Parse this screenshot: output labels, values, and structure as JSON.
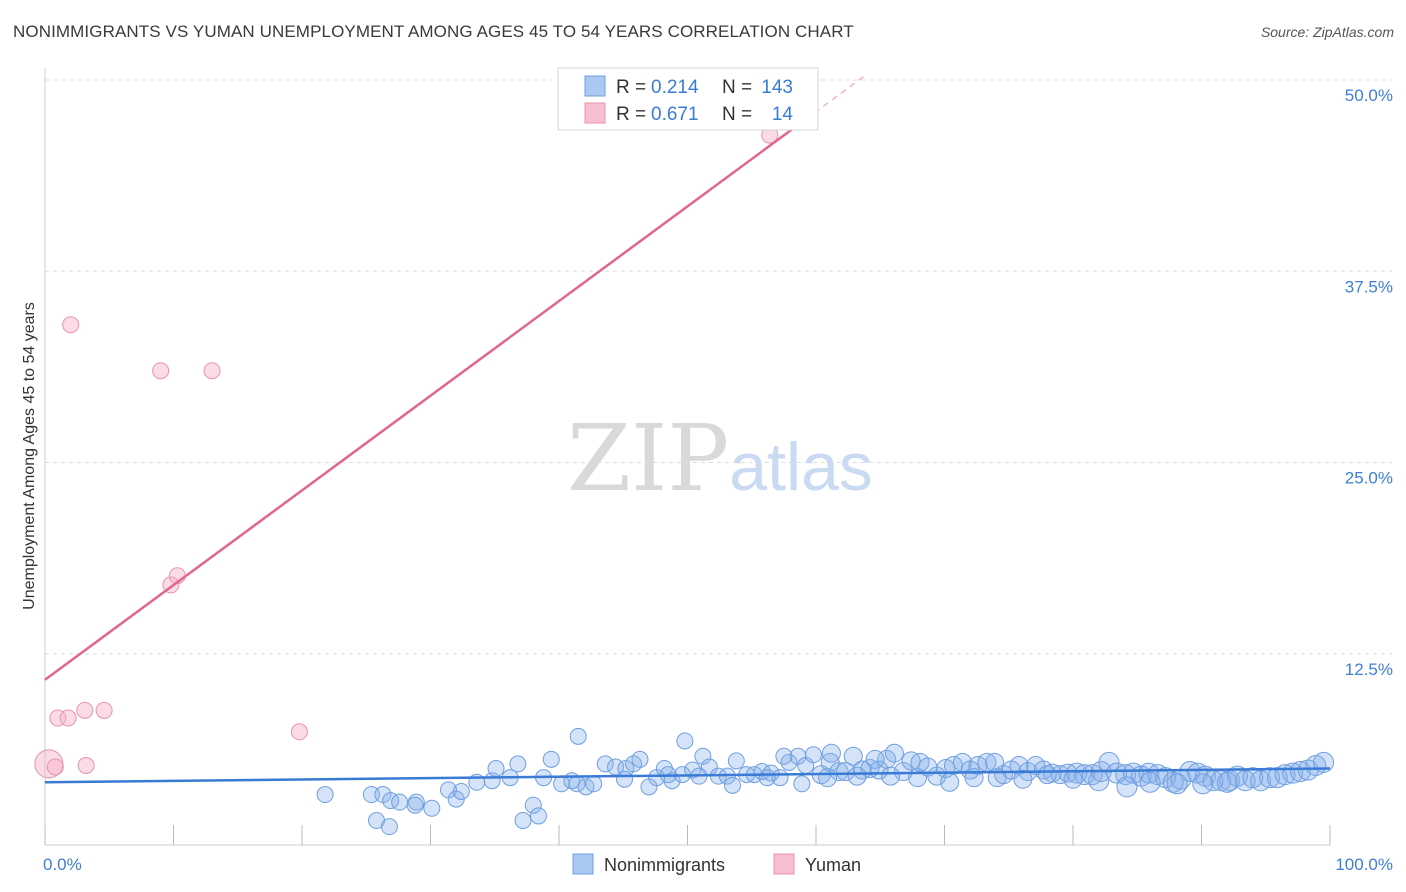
{
  "header": {
    "title": "NONIMMIGRANTS VS YUMAN UNEMPLOYMENT AMONG AGES 45 TO 54 YEARS CORRELATION CHART",
    "source": "Source: ZipAtlas.com"
  },
  "watermark": {
    "zip": "ZIP",
    "atlas": "atlas"
  },
  "legend": {
    "rows": [
      {
        "r_label": "R =",
        "r_value": "0.214",
        "n_label": "N =",
        "n_value": "143",
        "color": "#a9c8f2",
        "stroke": "#6f9fe0"
      },
      {
        "r_label": "R =",
        "r_value": "0.671",
        "n_label": "N =",
        "n_value": "14",
        "color": "#f8bfd0",
        "stroke": "#e993ae"
      }
    ]
  },
  "bottom_legend": {
    "items": [
      "Nonimmigrants",
      "Yuman"
    ]
  },
  "colors": {
    "blue": "#3a7bd5",
    "pink": "#e0668e",
    "blue_fill": "rgba(133,176,234,0.35)",
    "pink_fill": "rgba(246,178,199,0.45)",
    "tick": "#3f7fd4"
  },
  "chart_data": {
    "type": "scatter",
    "title": "NONIMMIGRANTS VS YUMAN UNEMPLOYMENT AMONG AGES 45 TO 54 YEARS CORRELATION CHART",
    "xlabel": "",
    "ylabel": "Unemployment Among Ages 45 to 54 years",
    "xlim": [
      0,
      100
    ],
    "ylim": [
      0,
      50
    ],
    "x_tick_labels": [
      "0.0%",
      "100.0%"
    ],
    "y_ticks": [
      12.5,
      25.0,
      37.5,
      50.0
    ],
    "y_tick_labels": [
      "12.5%",
      "25.0%",
      "37.5%",
      "50.0%"
    ],
    "series": [
      {
        "name": "Nonimmigrants",
        "r": 0.214,
        "n": 143,
        "trend": {
          "x0": 0,
          "y0": 4.1,
          "x1": 100,
          "y1": 5.0
        },
        "points": [
          [
            21.8,
            3.3
          ],
          [
            25.4,
            3.3
          ],
          [
            26.3,
            3.3
          ],
          [
            26.9,
            2.9
          ],
          [
            27.6,
            2.8
          ],
          [
            28.9,
            2.8
          ],
          [
            30.1,
            2.4
          ],
          [
            31.4,
            3.6
          ],
          [
            32.0,
            3.0
          ],
          [
            32.4,
            3.5
          ],
          [
            25.8,
            1.6
          ],
          [
            26.8,
            1.2
          ],
          [
            28.8,
            2.6
          ],
          [
            34.8,
            4.2
          ],
          [
            33.6,
            4.1
          ],
          [
            36.2,
            4.4
          ],
          [
            35.1,
            5.0
          ],
          [
            36.8,
            5.3
          ],
          [
            38.0,
            2.6
          ],
          [
            38.4,
            1.9
          ],
          [
            37.2,
            1.6
          ],
          [
            38.8,
            4.4
          ],
          [
            39.4,
            5.6
          ],
          [
            40.2,
            4.0
          ],
          [
            41.0,
            4.2
          ],
          [
            41.4,
            4.0
          ],
          [
            42.1,
            3.8
          ],
          [
            42.7,
            4.0
          ],
          [
            43.6,
            5.3
          ],
          [
            44.4,
            5.1
          ],
          [
            45.2,
            5.0
          ],
          [
            45.8,
            5.3
          ],
          [
            46.3,
            5.6
          ],
          [
            47.6,
            4.4
          ],
          [
            48.2,
            5.0
          ],
          [
            48.8,
            4.2
          ],
          [
            49.6,
            4.6
          ],
          [
            50.4,
            4.9
          ],
          [
            51.2,
            5.8
          ],
          [
            51.7,
            5.1
          ],
          [
            52.4,
            4.5
          ],
          [
            53.1,
            4.5
          ],
          [
            53.8,
            5.5
          ],
          [
            54.6,
            4.6
          ],
          [
            55.2,
            4.6
          ],
          [
            55.8,
            4.8
          ],
          [
            56.5,
            4.7
          ],
          [
            57.2,
            4.4
          ],
          [
            57.9,
            5.4
          ],
          [
            58.6,
            5.8
          ],
          [
            59.2,
            5.2
          ],
          [
            59.8,
            5.9
          ],
          [
            60.4,
            4.6
          ],
          [
            61.1,
            5.4
          ],
          [
            61.8,
            4.8
          ],
          [
            62.3,
            4.8
          ],
          [
            62.9,
            5.8
          ],
          [
            63.6,
            4.9
          ],
          [
            64.2,
            5.0
          ],
          [
            64.9,
            4.9
          ],
          [
            65.5,
            5.6
          ],
          [
            66.1,
            6.0
          ],
          [
            66.8,
            4.8
          ],
          [
            67.4,
            5.5
          ],
          [
            68.1,
            5.4
          ],
          [
            68.7,
            5.1
          ],
          [
            69.4,
            4.5
          ],
          [
            70.1,
            5.0
          ],
          [
            70.7,
            5.2
          ],
          [
            71.4,
            5.4
          ],
          [
            72.0,
            4.9
          ],
          [
            72.6,
            5.2
          ],
          [
            73.3,
            5.4
          ],
          [
            73.9,
            5.4
          ],
          [
            74.6,
            4.6
          ],
          [
            75.2,
            4.9
          ],
          [
            75.8,
            5.2
          ],
          [
            76.5,
            4.8
          ],
          [
            77.1,
            5.2
          ],
          [
            77.7,
            4.9
          ],
          [
            78.4,
            4.7
          ],
          [
            79.0,
            4.6
          ],
          [
            79.6,
            4.7
          ],
          [
            80.3,
            4.7
          ],
          [
            80.9,
            4.6
          ],
          [
            81.5,
            4.6
          ],
          [
            82.2,
            4.8
          ],
          [
            82.8,
            5.4
          ],
          [
            83.4,
            4.7
          ],
          [
            84.1,
            4.6
          ],
          [
            84.7,
            4.7
          ],
          [
            85.3,
            4.5
          ],
          [
            85.9,
            4.7
          ],
          [
            86.6,
            4.6
          ],
          [
            87.2,
            4.4
          ],
          [
            87.8,
            4.1
          ],
          [
            88.4,
            4.3
          ],
          [
            89.1,
            4.8
          ],
          [
            89.7,
            4.7
          ],
          [
            90.3,
            4.5
          ],
          [
            90.9,
            4.2
          ],
          [
            91.5,
            4.2
          ],
          [
            92.2,
            4.2
          ],
          [
            92.8,
            4.5
          ],
          [
            93.4,
            4.2
          ],
          [
            94.0,
            4.4
          ],
          [
            94.6,
            4.2
          ],
          [
            95.3,
            4.4
          ],
          [
            95.9,
            4.4
          ],
          [
            96.5,
            4.6
          ],
          [
            97.1,
            4.7
          ],
          [
            97.7,
            4.8
          ],
          [
            98.3,
            4.9
          ],
          [
            98.9,
            5.2
          ],
          [
            99.5,
            5.4
          ],
          [
            64.6,
            5.6
          ],
          [
            57.5,
            5.8
          ],
          [
            49.8,
            6.8
          ],
          [
            41.5,
            7.1
          ],
          [
            61.2,
            6.0
          ],
          [
            45.1,
            4.3
          ],
          [
            47.0,
            3.8
          ],
          [
            48.5,
            4.6
          ],
          [
            50.9,
            4.5
          ],
          [
            53.5,
            3.9
          ],
          [
            56.2,
            4.4
          ],
          [
            58.9,
            4.0
          ],
          [
            60.9,
            4.4
          ],
          [
            63.2,
            4.5
          ],
          [
            65.8,
            4.5
          ],
          [
            67.9,
            4.4
          ],
          [
            70.4,
            4.1
          ],
          [
            72.3,
            4.4
          ],
          [
            74.1,
            4.4
          ],
          [
            76.1,
            4.3
          ],
          [
            78.0,
            4.6
          ],
          [
            80.0,
            4.3
          ],
          [
            82.0,
            4.2
          ],
          [
            84.2,
            3.8
          ],
          [
            86.0,
            4.1
          ],
          [
            88.1,
            4.0
          ],
          [
            90.1,
            4.0
          ],
          [
            92.0,
            4.1
          ]
        ]
      },
      {
        "name": "Yuman",
        "r": 0.671,
        "n": 14,
        "trend": {
          "x0": 0,
          "y0": 10.8,
          "x1": 58.5,
          "y1": 47.0
        },
        "points": [
          [
            0.3,
            5.3
          ],
          [
            0.8,
            5.1
          ],
          [
            1.0,
            8.3
          ],
          [
            1.8,
            8.3
          ],
          [
            2.0,
            34.0
          ],
          [
            3.1,
            8.8
          ],
          [
            3.2,
            5.2
          ],
          [
            4.6,
            8.8
          ],
          [
            9.0,
            31.0
          ],
          [
            9.8,
            17.0
          ],
          [
            10.3,
            17.6
          ],
          [
            13.0,
            31.0
          ],
          [
            19.8,
            7.4
          ],
          [
            56.4,
            46.4
          ]
        ]
      }
    ]
  }
}
